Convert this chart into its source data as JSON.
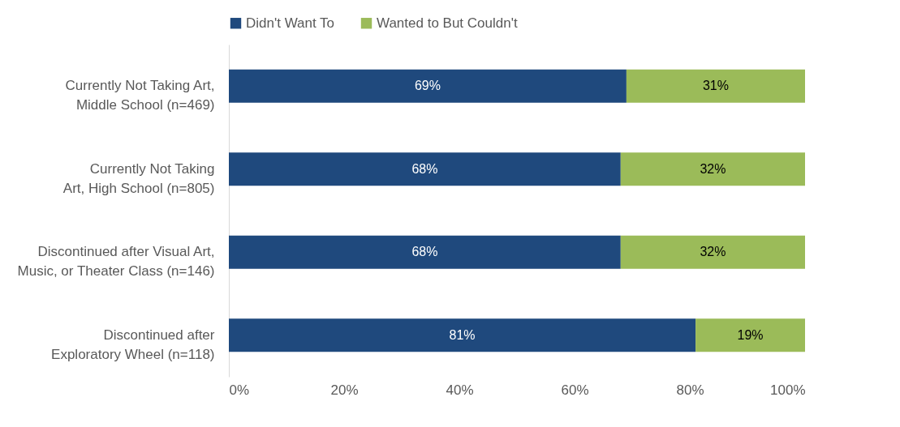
{
  "chart_data": {
    "type": "bar",
    "orientation": "horizontal",
    "stacked": true,
    "legend": "top",
    "categories": [
      "Currently Not Taking Art, Middle School (n=469)",
      "Currently Not Taking Art, High School (n=805)",
      "Discontinued after Visual Art, Music, or Theater Class (n=146)",
      "Discontinued after Exploratory Wheel (n=118)"
    ],
    "series": [
      {
        "name": "Didn't Want To",
        "color": "#1f497d",
        "values": [
          69,
          68,
          68,
          81
        ],
        "value_labels": [
          "69%",
          "68%",
          "68%",
          "81%"
        ]
      },
      {
        "name": "Wanted to But Couldn't",
        "color": "#9bbb59",
        "values": [
          31,
          32,
          32,
          19
        ],
        "value_labels": [
          "31%",
          "32%",
          "32%",
          "19%"
        ]
      }
    ],
    "xlim": [
      0,
      100
    ],
    "xticks": [
      {
        "value": 0,
        "label": "0%"
      },
      {
        "value": 20,
        "label": "20%"
      },
      {
        "value": 40,
        "label": "40%"
      },
      {
        "value": 60,
        "label": "60%"
      },
      {
        "value": 80,
        "label": "80%"
      },
      {
        "value": 100,
        "label": "100%"
      }
    ]
  }
}
